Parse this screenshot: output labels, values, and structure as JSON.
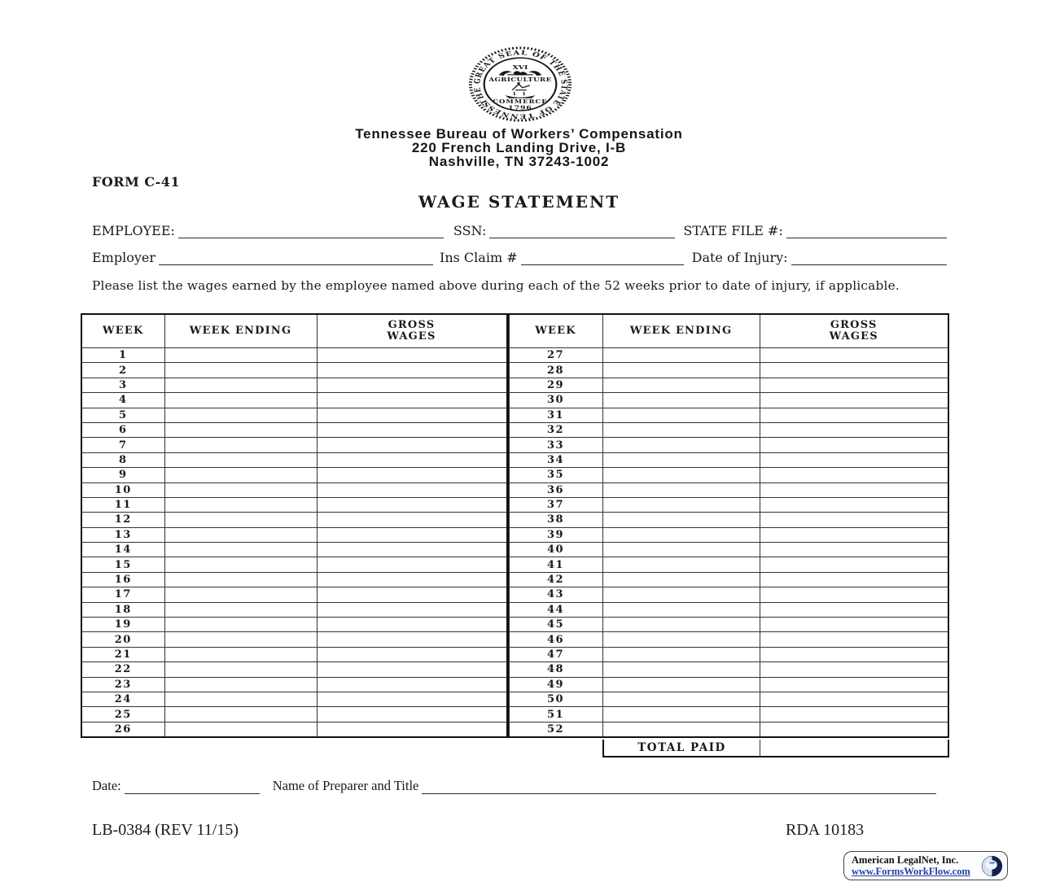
{
  "seal": {
    "ring_text": "THE GREAT SEAL OF THE STATE OF TENNESSEE",
    "numeral": "XVI",
    "agriculture_label": "AGRICULTURE",
    "commerce_label": "COMMERCE",
    "year_label": "· 1796 ·"
  },
  "header": {
    "agency_name": "Tennessee Bureau of Workers’ Compensation",
    "address_line1": "220 French Landing Drive, I-B",
    "address_line2": "Nashville, TN 37243-1002",
    "form_number": "FORM C-41",
    "form_title": "WAGE STATEMENT"
  },
  "fields": {
    "employee_label": "EMPLOYEE:",
    "employee_value": "",
    "ssn_label": "SSN:",
    "ssn_value": "",
    "state_file_label": "STATE FILE #:",
    "state_file_value": "",
    "employer_label": "Employer",
    "employer_value": "",
    "ins_claim_label": "Ins Claim #",
    "ins_claim_value": "",
    "date_of_injury_label": "Date of Injury:",
    "date_of_injury_value": ""
  },
  "instructions": "Please list the wages earned by the employee named above during each of the 52 weeks prior to date of injury, if applicable.",
  "table": {
    "col_week": "WEEK",
    "col_week_ending": "WEEK ENDING",
    "col_gross_wages": "GROSS WAGES",
    "left_weeks": [
      "1",
      "2",
      "3",
      "4",
      "5",
      "6",
      "7",
      "8",
      "9",
      "10",
      "11",
      "12",
      "13",
      "14",
      "15",
      "16",
      "17",
      "18",
      "19",
      "20",
      "21",
      "22",
      "23",
      "24",
      "25",
      "26"
    ],
    "right_weeks": [
      "27",
      "28",
      "29",
      "30",
      "31",
      "32",
      "33",
      "34",
      "35",
      "36",
      "37",
      "38",
      "39",
      "40",
      "41",
      "42",
      "43",
      "44",
      "45",
      "46",
      "47",
      "48",
      "49",
      "50",
      "51",
      "52"
    ],
    "total_paid_label": "TOTAL PAID",
    "total_paid_value": ""
  },
  "signature": {
    "date_label": "Date:",
    "date_value": "",
    "preparer_label": "Name of Preparer and Title",
    "preparer_value": ""
  },
  "footer": {
    "form_code": "LB-0384 (REV 11/15)",
    "rda_number": "RDA 10183"
  },
  "badge": {
    "company": "American LegalNet, Inc.",
    "url": "www.FormsWorkFlow.com"
  },
  "colors": {
    "ink": "#1a1a1a",
    "link_blue": "#2242a8",
    "globe_navy": "#12214f"
  }
}
